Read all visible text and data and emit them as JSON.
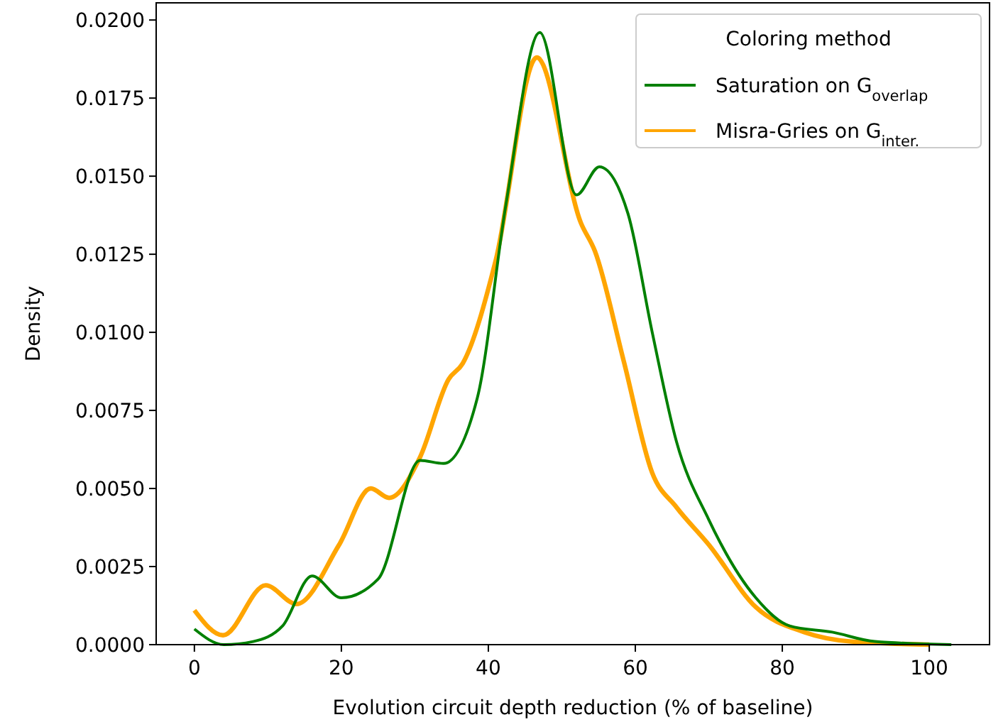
{
  "chart_data": {
    "type": "line",
    "xlabel": "Evolution circuit depth reduction (% of baseline)",
    "ylabel": "Density",
    "legend_title": "Coloring method",
    "legend": "top right",
    "grid": false,
    "xlim": [
      -5.2,
      108.2
    ],
    "ylim": [
      0,
      0.02055
    ],
    "xticks": [
      0,
      20,
      40,
      60,
      80,
      100
    ],
    "yticks": [
      {
        "value": 0,
        "label": "0.0000"
      },
      {
        "value": 0.0025,
        "label": "0.0025"
      },
      {
        "value": 0.005,
        "label": "0.0050"
      },
      {
        "value": 0.0075,
        "label": "0.0075"
      },
      {
        "value": 0.01,
        "label": "0.0100"
      },
      {
        "value": 0.0125,
        "label": "0.0125"
      },
      {
        "value": 0.015,
        "label": "0.0150"
      },
      {
        "value": 0.0175,
        "label": "0.0175"
      },
      {
        "value": 0.02,
        "label": "0.0200"
      }
    ],
    "series": [
      {
        "name": "Saturation on G$_{overlap}$",
        "color": "#008000",
        "x": [
          0,
          4,
          8,
          12,
          16,
          20,
          25,
          30.7,
          33.9,
          38.5,
          42.4,
          47,
          52,
          55.1,
          59,
          62.3,
          65.6,
          70,
          76.4,
          81,
          86.8,
          92.6,
          103
        ],
        "values": [
          0.0005,
          0,
          0.0001,
          0.0006,
          0.0022,
          0.0015,
          0.0021,
          0.0059,
          0.0058,
          0.0079,
          0.0141,
          0.0196,
          0.0144,
          0.0153,
          0.0138,
          0.01,
          0.0065,
          0.004,
          0.0015,
          0.0006,
          0.0004,
          0.0001,
          0
        ]
      },
      {
        "name": "Misra-Gries on G$_{inter.}$",
        "color": "#ffa500",
        "x": [
          0,
          3.9,
          9.7,
          13.9,
          19.7,
          24,
          26.5,
          30.7,
          34.6,
          36.5,
          41,
          46.6,
          52.6,
          54.5,
          58.4,
          62.3,
          65.6,
          70,
          76.4,
          83,
          89.4,
          100
        ],
        "values": [
          0.0011,
          0.0003,
          0.0019,
          0.0013,
          0.0032,
          0.005,
          0.0047,
          0.006,
          0.0085,
          0.009,
          0.0123,
          0.0188,
          0.0135,
          0.0126,
          0.0091,
          0.0055,
          0.0044,
          0.0032,
          0.0012,
          0.0004,
          0.0001,
          0
        ]
      }
    ]
  }
}
